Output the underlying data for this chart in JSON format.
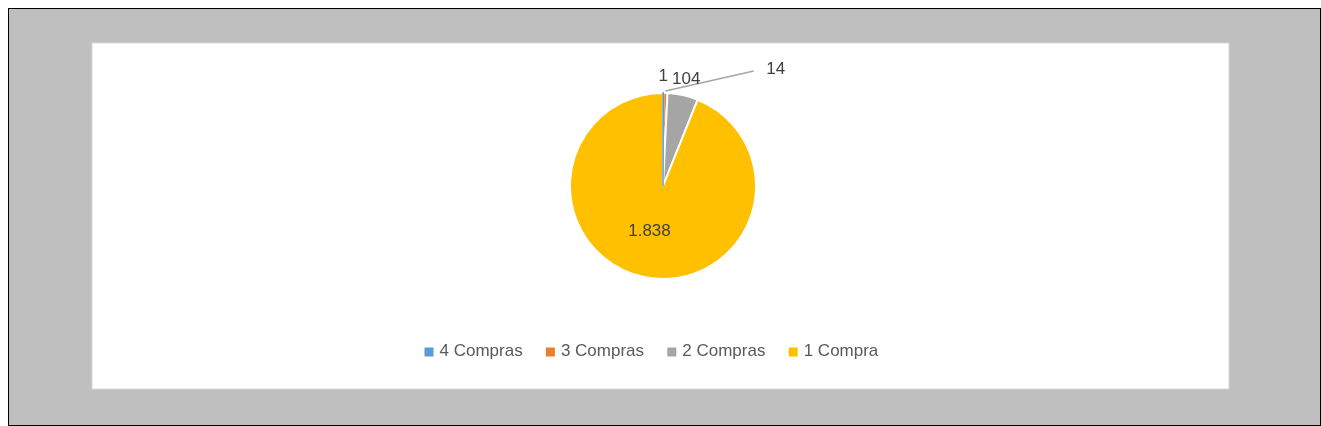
{
  "chart_data": {
    "type": "pie",
    "categories": [
      "4 Compras",
      "3 Compras",
      "2 Compras",
      "1 Compra"
    ],
    "values": [
      1,
      14,
      104,
      1838
    ],
    "colors": [
      "#5b9bd5",
      "#ed7d31",
      "#a5a5a5",
      "#ffc000"
    ],
    "value_labels": [
      "1",
      "14",
      "104",
      "1.838"
    ],
    "legend": "bottom"
  }
}
